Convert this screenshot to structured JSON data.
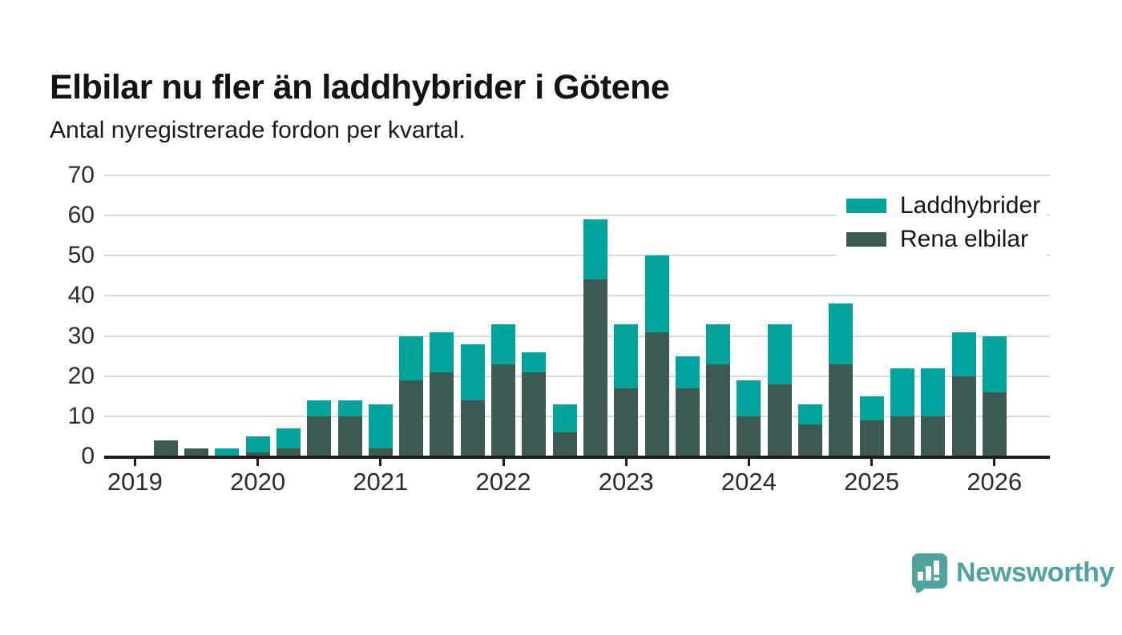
{
  "title": "Elbilar nu fler än laddhybrider i Götene",
  "subtitle": "Antal nyregistrerade fordon per kvartal.",
  "legend": [
    {
      "label": "Laddhybrider",
      "color": "#00a49c"
    },
    {
      "label": "Rena elbilar",
      "color": "#3c5a54"
    }
  ],
  "footer": {
    "logo_text": "Newsworthy",
    "logo_color": "#4da39e"
  },
  "colors": {
    "laddhybrider": "#00a49c",
    "rena_elbilar": "#3c5a54",
    "axis": "#1d1d1b",
    "grid": "#dadada",
    "text": "#141414"
  },
  "chart_data": {
    "type": "bar",
    "stacked": true,
    "title": "Elbilar nu fler än laddhybrider i Götene",
    "subtitle": "Antal nyregistrerade fordon per kvartal.",
    "xlabel": "",
    "ylabel": "",
    "ylim": [
      0,
      70
    ],
    "yticks": [
      0,
      10,
      20,
      30,
      40,
      50,
      60,
      70
    ],
    "grid": "horizontal",
    "legend_position": "top-right",
    "x": [
      "2019 Q1",
      "2019 Q2",
      "2019 Q3",
      "2019 Q4",
      "2020 Q1",
      "2020 Q2",
      "2020 Q3",
      "2020 Q4",
      "2021 Q1",
      "2021 Q2",
      "2021 Q3",
      "2021 Q4",
      "2022 Q1",
      "2022 Q2",
      "2022 Q3",
      "2022 Q4",
      "2023 Q1",
      "2023 Q2",
      "2023 Q3",
      "2023 Q4",
      "2024 Q1",
      "2024 Q2",
      "2024 Q3",
      "2024 Q4",
      "2025 Q1",
      "2025 Q2",
      "2025 Q3",
      "2025 Q4",
      "2026 Q1"
    ],
    "year_ticks": [
      "2019",
      "2020",
      "2021",
      "2022",
      "2023",
      "2024",
      "2025",
      "2026"
    ],
    "series": [
      {
        "name": "Rena elbilar",
        "color": "#3c5a54",
        "values": [
          0,
          4,
          2,
          0,
          1,
          2,
          10,
          10,
          2,
          19,
          21,
          14,
          23,
          21,
          6,
          44,
          17,
          31,
          17,
          23,
          10,
          18,
          8,
          23,
          9,
          10,
          10,
          20,
          16
        ]
      },
      {
        "name": "Laddhybrider",
        "color": "#00a49c",
        "values": [
          0,
          0,
          0,
          2,
          4,
          5,
          4,
          4,
          11,
          11,
          10,
          14,
          10,
          5,
          7,
          15,
          16,
          19,
          8,
          10,
          9,
          15,
          5,
          15,
          6,
          12,
          12,
          11,
          14
        ]
      }
    ],
    "totals": [
      0,
      4,
      2,
      2,
      5,
      7,
      14,
      14,
      13,
      30,
      31,
      28,
      33,
      26,
      13,
      59,
      33,
      50,
      25,
      33,
      19,
      33,
      13,
      38,
      15,
      22,
      22,
      31,
      30
    ]
  }
}
